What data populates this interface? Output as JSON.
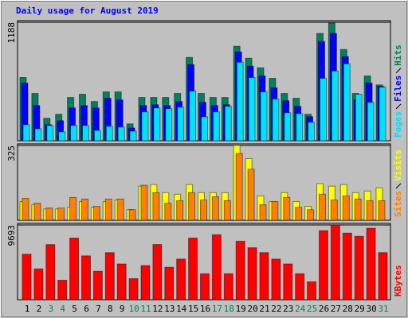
{
  "chart_data": [
    {
      "type": "bar",
      "title": "Daily usage for August 2019",
      "categories": [
        "1",
        "2",
        "3",
        "4",
        "5",
        "6",
        "7",
        "8",
        "9",
        "10",
        "11",
        "12",
        "13",
        "14",
        "15",
        "16",
        "17",
        "18",
        "19",
        "20",
        "21",
        "22",
        "23",
        "24",
        "25",
        "26",
        "27",
        "28",
        "29",
        "30",
        "31"
      ],
      "category_colors": [
        "#000000",
        "#000000",
        "#00805c",
        "#00805c",
        "#000000",
        "#000000",
        "#000000",
        "#000000",
        "#000000",
        "#00805c",
        "#00805c",
        "#000000",
        "#000000",
        "#000000",
        "#000000",
        "#000000",
        "#00805c",
        "#00805c",
        "#000000",
        "#000000",
        "#000000",
        "#000000",
        "#000000",
        "#00805c",
        "#00805c",
        "#000000",
        "#000000",
        "#000000",
        "#000000",
        "#000000",
        "#00805c"
      ],
      "ylim": [
        0,
        1188
      ],
      "yticks": [
        1188
      ],
      "grid": true,
      "series": [
        {
          "name": "Hits",
          "color": "#00805c",
          "values": [
            634,
            474,
            225,
            265,
            434,
            466,
            393,
            490,
            490,
            169,
            434,
            434,
            434,
            474,
            835,
            474,
            434,
            434,
            947,
            827,
            731,
            626,
            474,
            426,
            265,
            1076,
            1180,
            915,
            474,
            650,
            560
          ]
        },
        {
          "name": "Files",
          "color": "#0000ff",
          "values": [
            578,
            353,
            161,
            201,
            329,
            353,
            329,
            426,
            410,
            128,
            353,
            361,
            353,
            393,
            763,
            385,
            353,
            361,
            891,
            747,
            650,
            530,
            401,
            345,
            241,
            996,
            1076,
            843,
            410,
            578,
            545
          ]
        },
        {
          "name": "Pages",
          "color": "#00e0ff",
          "values": [
            161,
            120,
            153,
            88,
            153,
            153,
            104,
            145,
            137,
            96,
            289,
            329,
            321,
            337,
            498,
            241,
            289,
            345,
            787,
            634,
            490,
            418,
            281,
            273,
            185,
            626,
            699,
            771,
            466,
            385,
            538
          ]
        }
      ]
    },
    {
      "type": "bar",
      "ylim": [
        0,
        325
      ],
      "yticks": [
        325
      ],
      "grid": true,
      "series": [
        {
          "name": "Visits",
          "color": "#ffff00",
          "values": [
            81,
            67,
            49,
            49,
            56,
            81,
            56,
            81,
            88,
            46,
            148,
            155,
            120,
            113,
            155,
            120,
            120,
            120,
            325,
            268,
            106,
            81,
            120,
            81,
            60,
            159,
            148,
            155,
            120,
            127,
            141
          ]
        },
        {
          "name": "Sites",
          "color": "#ff8000",
          "values": [
            95,
            74,
            53,
            53,
            99,
            92,
            60,
            92,
            92,
            46,
            152,
            120,
            74,
            85,
            120,
            88,
            102,
            85,
            290,
            222,
            67,
            81,
            99,
            56,
            46,
            113,
            88,
            106,
            92,
            85,
            85
          ]
        }
      ]
    },
    {
      "type": "bar",
      "ylim": [
        0,
        9693
      ],
      "yticks": [
        9693
      ],
      "grid": true,
      "series": [
        {
          "name": "KBytes",
          "color": "#ff0000",
          "values": [
            5900,
            4000,
            7150,
            2530,
            8000,
            5690,
            3690,
            6110,
            4640,
            2740,
            4430,
            7160,
            4210,
            5270,
            8000,
            3370,
            8430,
            3370,
            7590,
            6740,
            6110,
            5270,
            4640,
            3370,
            2320,
            8960,
            9693,
            8640,
            8220,
            9270,
            6110
          ]
        }
      ]
    }
  ]
}
